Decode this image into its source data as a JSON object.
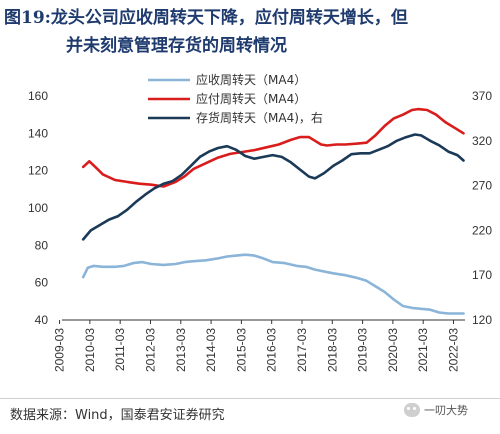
{
  "title": {
    "line1": "图19:龙头公司应收周转天下降，应付周转天增长，但",
    "line2": "并未刻意管理存货的周转情况"
  },
  "source": "数据来源：Wind，国泰君安证券研究",
  "watermark": "一叨大势",
  "colors": {
    "title": "#1f3b6e",
    "series_receivable": "#8ab4d8",
    "series_payable": "#d91c1c",
    "series_inventory": "#1b3a57"
  },
  "chart_data": {
    "type": "line",
    "x_ticks": [
      "2009-03",
      "2010-03",
      "2011-03",
      "2012-03",
      "2013-03",
      "2014-03",
      "2015-03",
      "2016-03",
      "2017-03",
      "2018-03",
      "2019-03",
      "2020-03",
      "2021-03",
      "2022-03"
    ],
    "y_left": {
      "ticks": [
        "40",
        "60",
        "80",
        "100",
        "120",
        "140",
        "160"
      ],
      "lim": [
        40,
        160
      ]
    },
    "y_right": {
      "ticks": [
        "120",
        "170",
        "220",
        "270",
        "320",
        "370"
      ],
      "lim": [
        120,
        370
      ]
    },
    "grid": false,
    "legend_position": "top-center",
    "series": [
      {
        "name": "应收周转天（MA4）",
        "axis": "left",
        "color": "#8ab4d8",
        "points": [
          [
            2009.95,
            63
          ],
          [
            2010.1,
            68
          ],
          [
            2010.3,
            69
          ],
          [
            2010.6,
            68.5
          ],
          [
            2011.0,
            68.5
          ],
          [
            2011.3,
            69
          ],
          [
            2011.6,
            70.5
          ],
          [
            2011.9,
            71
          ],
          [
            2012.2,
            70
          ],
          [
            2012.6,
            69.5
          ],
          [
            2013.0,
            70
          ],
          [
            2013.3,
            71
          ],
          [
            2013.6,
            71.5
          ],
          [
            2014.0,
            72
          ],
          [
            2014.4,
            73
          ],
          [
            2014.7,
            74
          ],
          [
            2015.0,
            74.5
          ],
          [
            2015.3,
            75
          ],
          [
            2015.6,
            74.5
          ],
          [
            2015.9,
            73
          ],
          [
            2016.2,
            71
          ],
          [
            2016.6,
            70.5
          ],
          [
            2017.0,
            69
          ],
          [
            2017.3,
            68.5
          ],
          [
            2017.6,
            67
          ],
          [
            2017.9,
            66
          ],
          [
            2018.2,
            65
          ],
          [
            2018.6,
            64
          ],
          [
            2019.0,
            62.5
          ],
          [
            2019.3,
            61
          ],
          [
            2019.6,
            58
          ],
          [
            2019.9,
            55
          ],
          [
            2020.2,
            51
          ],
          [
            2020.5,
            47.5
          ],
          [
            2020.8,
            46.5
          ],
          [
            2021.1,
            46
          ],
          [
            2021.4,
            45.5
          ],
          [
            2021.7,
            44
          ],
          [
            2022.0,
            43.5
          ],
          [
            2022.3,
            43.5
          ],
          [
            2022.5,
            43.5
          ]
        ]
      },
      {
        "name": "应付周转天（MA4）",
        "axis": "left",
        "color": "#d91c1c",
        "points": [
          [
            2009.95,
            122
          ],
          [
            2010.15,
            125
          ],
          [
            2010.35,
            122
          ],
          [
            2010.6,
            118
          ],
          [
            2011.0,
            115
          ],
          [
            2011.4,
            114
          ],
          [
            2011.8,
            113
          ],
          [
            2012.2,
            112.5
          ],
          [
            2012.6,
            111.5
          ],
          [
            2013.0,
            114
          ],
          [
            2013.3,
            117
          ],
          [
            2013.6,
            121
          ],
          [
            2014.0,
            124
          ],
          [
            2014.4,
            127
          ],
          [
            2014.8,
            129
          ],
          [
            2015.2,
            130
          ],
          [
            2015.6,
            131
          ],
          [
            2016.0,
            132.5
          ],
          [
            2016.4,
            134
          ],
          [
            2016.8,
            136.5
          ],
          [
            2017.1,
            138
          ],
          [
            2017.4,
            138
          ],
          [
            2017.6,
            136
          ],
          [
            2017.8,
            134
          ],
          [
            2018.0,
            133.5
          ],
          [
            2018.3,
            134
          ],
          [
            2018.6,
            134
          ],
          [
            2019.0,
            134.5
          ],
          [
            2019.3,
            135
          ],
          [
            2019.6,
            139
          ],
          [
            2019.9,
            144
          ],
          [
            2020.2,
            148
          ],
          [
            2020.5,
            150
          ],
          [
            2020.8,
            152.5
          ],
          [
            2021.0,
            153
          ],
          [
            2021.3,
            152.5
          ],
          [
            2021.6,
            150
          ],
          [
            2021.9,
            146
          ],
          [
            2022.2,
            143
          ],
          [
            2022.5,
            140
          ]
        ]
      },
      {
        "name": "存货周转天（MA4)，右",
        "axis": "right",
        "color": "#1b3a57",
        "points": [
          [
            2009.95,
            210
          ],
          [
            2010.2,
            220
          ],
          [
            2010.5,
            226
          ],
          [
            2010.8,
            232
          ],
          [
            2011.1,
            236
          ],
          [
            2011.4,
            243
          ],
          [
            2011.7,
            252
          ],
          [
            2012.0,
            260
          ],
          [
            2012.3,
            267
          ],
          [
            2012.6,
            272
          ],
          [
            2012.9,
            275
          ],
          [
            2013.2,
            282
          ],
          [
            2013.5,
            292
          ],
          [
            2013.8,
            302
          ],
          [
            2014.1,
            308
          ],
          [
            2014.4,
            312
          ],
          [
            2014.7,
            314
          ],
          [
            2015.0,
            310
          ],
          [
            2015.3,
            303
          ],
          [
            2015.6,
            300
          ],
          [
            2015.9,
            302
          ],
          [
            2016.2,
            304
          ],
          [
            2016.5,
            302
          ],
          [
            2016.8,
            296
          ],
          [
            2017.1,
            288
          ],
          [
            2017.4,
            280
          ],
          [
            2017.6,
            278
          ],
          [
            2017.9,
            284
          ],
          [
            2018.2,
            292
          ],
          [
            2018.5,
            298
          ],
          [
            2018.8,
            305
          ],
          [
            2019.1,
            306
          ],
          [
            2019.4,
            306
          ],
          [
            2019.7,
            310
          ],
          [
            2020.0,
            314
          ],
          [
            2020.3,
            320
          ],
          [
            2020.6,
            324
          ],
          [
            2020.9,
            327
          ],
          [
            2021.1,
            326
          ],
          [
            2021.4,
            320
          ],
          [
            2021.7,
            315
          ],
          [
            2022.0,
            308
          ],
          [
            2022.3,
            304
          ],
          [
            2022.5,
            298
          ]
        ]
      }
    ]
  }
}
